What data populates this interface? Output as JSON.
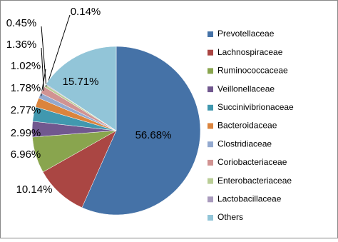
{
  "chart_data": {
    "type": "pie",
    "categories": [
      "Prevotellaceae",
      "Lachnospiraceae",
      "Ruminococcaceae",
      "Veillonellaceae",
      "Succinivibrionaceae",
      "Bacteroidaceae",
      "Clostridiaceae",
      "Coriobacteriaceae",
      "Enterobacteriaceae",
      "Lactobacillaceae",
      "Others"
    ],
    "values": [
      56.68,
      10.14,
      6.96,
      2.99,
      2.77,
      1.78,
      1.02,
      1.36,
      0.45,
      0.14,
      15.71
    ],
    "value_labels": [
      "56.68%",
      "10.14%",
      "6.96%",
      "2.99%",
      "2.77%",
      "1.78%",
      "1.02%",
      "1.36%",
      "0.45%",
      "0.14%",
      "15.71%"
    ],
    "colors": [
      "#4572a7",
      "#aa4643",
      "#89a54e",
      "#71588f",
      "#4198af",
      "#db843d",
      "#93a9cf",
      "#d19392",
      "#b9cd96",
      "#a99bbd",
      "#92c5d8"
    ],
    "legend": "right"
  }
}
